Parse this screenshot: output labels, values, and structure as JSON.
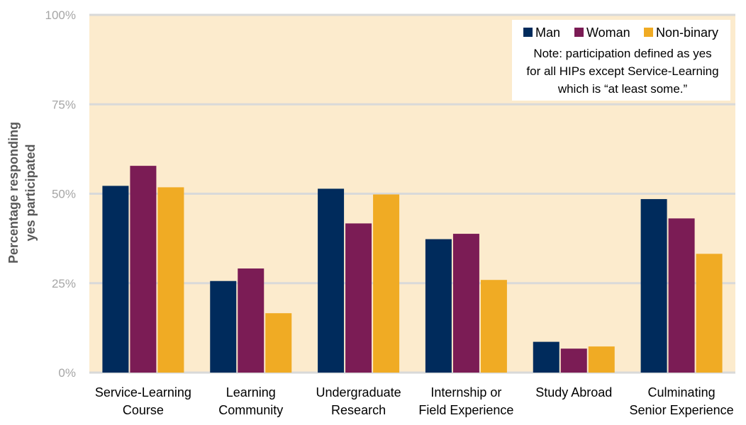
{
  "chart_data": {
    "type": "bar",
    "title": "",
    "xlabel": "",
    "ylabel_lines": [
      "Percentage responding",
      "yes participated"
    ],
    "ylim": [
      0,
      100
    ],
    "y_ticks": [
      {
        "value": 0,
        "label": "0%"
      },
      {
        "value": 25,
        "label": "25%"
      },
      {
        "value": 50,
        "label": "50%"
      },
      {
        "value": 75,
        "label": "75%"
      },
      {
        "value": 100,
        "label": "100%"
      }
    ],
    "grid": true,
    "legend_position": "top-right",
    "categories": [
      [
        "Service-Learning",
        "Course"
      ],
      [
        "Learning",
        "Community"
      ],
      [
        "Undergraduate",
        "Research"
      ],
      [
        "Internship or",
        "Field Experience"
      ],
      [
        "Study Abroad"
      ],
      [
        "Culminating",
        "Senior Experience"
      ]
    ],
    "series": [
      {
        "name": "Man",
        "color": "#002b5c",
        "values": [
          52.2,
          25.6,
          51.4,
          37.3,
          8.6,
          48.5
        ]
      },
      {
        "name": "Woman",
        "color": "#7b1c55",
        "values": [
          57.8,
          29.1,
          41.7,
          38.8,
          6.7,
          43.1
        ]
      },
      {
        "name": "Non-binary",
        "color": "#f0ab24",
        "values": [
          51.8,
          16.6,
          49.8,
          25.9,
          7.3,
          33.2
        ]
      }
    ],
    "note_lines": [
      "Note: participation defined as yes",
      "for all HIPs except Service-Learning",
      "which is “at least some.”"
    ],
    "colors": {
      "plot_background": "#fcebcd",
      "gridline": "#d9d9d9",
      "legend_background": "#ffffff"
    }
  }
}
